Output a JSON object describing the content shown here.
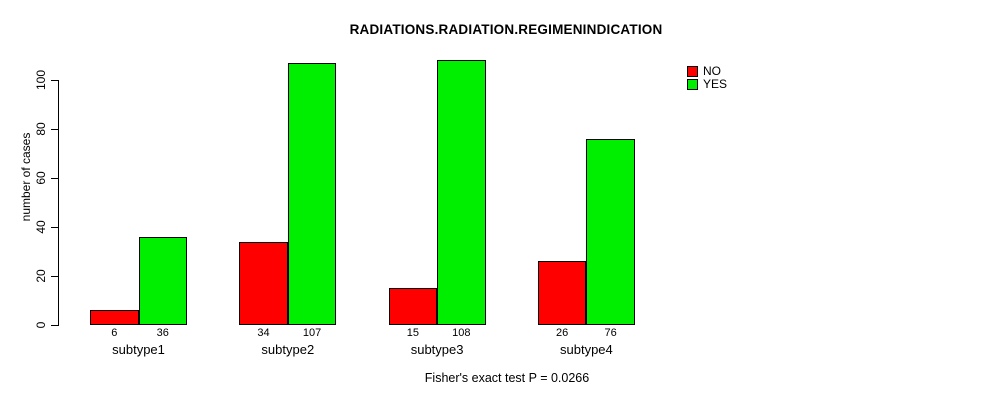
{
  "chart_data": {
    "type": "bar",
    "title": "RADIATIONS.RADIATION.REGIMENINDICATION",
    "ylabel": "number of cases",
    "xlabel": "",
    "categories": [
      "subtype1",
      "subtype2",
      "subtype3",
      "subtype4"
    ],
    "series": [
      {
        "name": "NO",
        "color": "#ff0000",
        "values": [
          6,
          34,
          15,
          26
        ]
      },
      {
        "name": "YES",
        "color": "#00ee00",
        "values": [
          36,
          107,
          108,
          76
        ]
      }
    ],
    "yticks": [
      0,
      20,
      40,
      60,
      80,
      100
    ],
    "ylim": [
      0,
      110
    ],
    "grid": false,
    "legend_position": "top-right",
    "bar_value_labels_shown": true,
    "footer": "Fisher's exact test P = 0.0266"
  },
  "colors": {
    "background": "#ffffff",
    "axis": "#000000",
    "text": "#000000"
  }
}
